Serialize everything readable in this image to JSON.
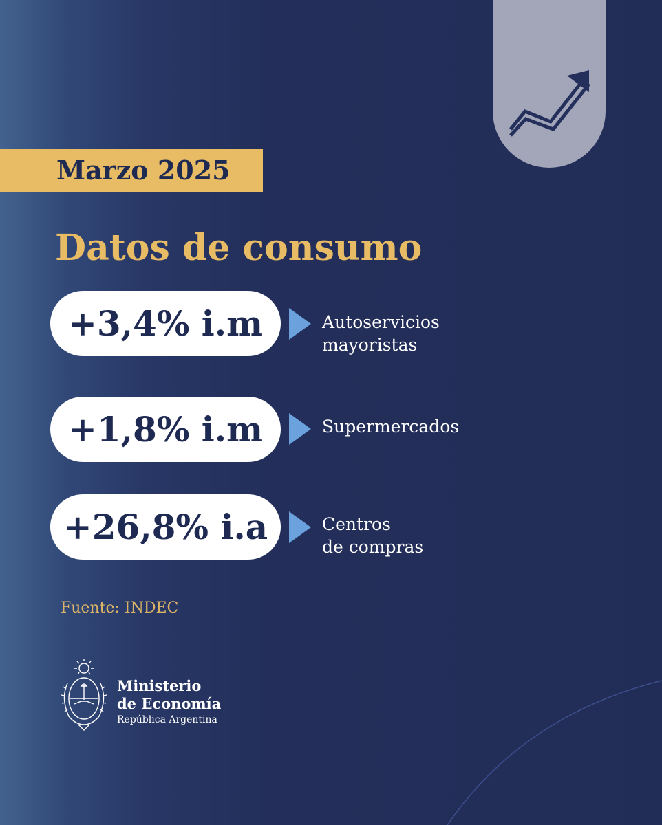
{
  "header": {
    "date_badge": "Marzo 2025",
    "trend_icon": "trending-up-arrow-icon"
  },
  "title": "Datos de consumo",
  "stats": [
    {
      "value": "+3,4% i.m",
      "label": "Autoservicios\nmayoristas"
    },
    {
      "value": "+1,8% i.m",
      "label": "Supermercados"
    },
    {
      "value": "+26,8% i.a",
      "label": "Centros\nde compras"
    }
  ],
  "source": "Fuente: INDEC",
  "logo": {
    "line1": "Ministerio",
    "line2": "de Economía",
    "line3": "República Argentina",
    "seal_icon": "argentina-coat-of-arms-icon"
  },
  "colors": {
    "background": "#222d57",
    "accent_gold": "#e8bb65",
    "tab_gray": "#a2a6b8",
    "arrow_blue": "#6ba2de",
    "text_dark": "#1f2a52"
  }
}
